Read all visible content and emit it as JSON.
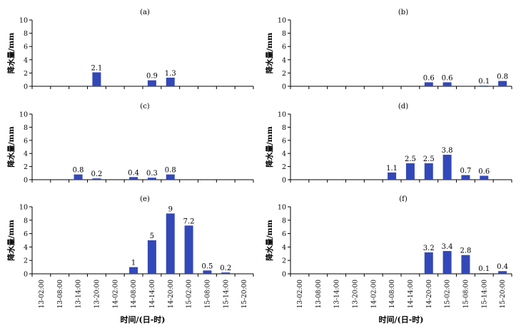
{
  "colors": {
    "bar": "#3348b8",
    "axis": "#000000"
  },
  "x_axis_label": "时间/(日-时)",
  "y_axis_label": "降水量/mm",
  "categories": [
    "13-02:00",
    "13-08:00",
    "13-14:00",
    "13-20:00",
    "14-02:00",
    "14-08:00",
    "14-14:00",
    "14-20:00",
    "15-02:00",
    "15-08:00",
    "15-14:00",
    "15-20:00"
  ],
  "chart_data": [
    {
      "type": "bar",
      "title": "(a)",
      "ylabel": "降水量/mm",
      "xlabel": "",
      "ylim": [
        0,
        10
      ],
      "yticks": [
        0,
        2,
        4,
        6,
        8,
        10
      ],
      "categories": [
        "13-02:00",
        "13-08:00",
        "13-14:00",
        "13-20:00",
        "14-02:00",
        "14-08:00",
        "14-14:00",
        "14-20:00",
        "15-02:00",
        "15-08:00",
        "15-14:00",
        "15-20:00"
      ],
      "values": [
        0,
        0,
        0,
        2.1,
        0,
        0,
        0.9,
        1.3,
        0,
        0,
        0,
        0
      ],
      "labels": [
        "",
        "",
        "",
        "2.1",
        "",
        "",
        "0.9",
        "1.3",
        "",
        "",
        "",
        ""
      ]
    },
    {
      "type": "bar",
      "title": "(b)",
      "ylabel": "降水量/mm",
      "xlabel": "",
      "ylim": [
        0,
        10
      ],
      "yticks": [
        0,
        2,
        4,
        6,
        8,
        10
      ],
      "categories": [
        "13-02:00",
        "13-08:00",
        "13-14:00",
        "13-20:00",
        "14-02:00",
        "14-08:00",
        "14-14:00",
        "14-20:00",
        "15-02:00",
        "15-08:00",
        "15-14:00",
        "15-20:00"
      ],
      "values": [
        0,
        0,
        0,
        0,
        0,
        0,
        0,
        0.6,
        0.6,
        0,
        0.1,
        0.8
      ],
      "labels": [
        "",
        "",
        "",
        "",
        "",
        "",
        "",
        "0.6",
        "0.6",
        "",
        "0.1",
        "0.8"
      ]
    },
    {
      "type": "bar",
      "title": "(c)",
      "ylabel": "降水量/mm",
      "xlabel": "",
      "ylim": [
        0,
        10
      ],
      "yticks": [
        0,
        2,
        4,
        6,
        8,
        10
      ],
      "categories": [
        "13-02:00",
        "13-08:00",
        "13-14:00",
        "13-20:00",
        "14-02:00",
        "14-08:00",
        "14-14:00",
        "14-20:00",
        "15-02:00",
        "15-08:00",
        "15-14:00",
        "15-20:00"
      ],
      "values": [
        0,
        0,
        0.8,
        0.2,
        0,
        0.4,
        0.3,
        0.8,
        0,
        0,
        0,
        0
      ],
      "labels": [
        "",
        "",
        "0.8",
        "0.2",
        "",
        "0.4",
        "0.3",
        "0.8",
        "",
        "",
        "",
        ""
      ]
    },
    {
      "type": "bar",
      "title": "(d)",
      "ylabel": "降水量/mm",
      "xlabel": "",
      "ylim": [
        0,
        10
      ],
      "yticks": [
        0,
        2,
        4,
        6,
        8,
        10
      ],
      "categories": [
        "13-02:00",
        "13-08:00",
        "13-14:00",
        "13-20:00",
        "14-02:00",
        "14-08:00",
        "14-14:00",
        "14-20:00",
        "15-02:00",
        "15-08:00",
        "15-14:00",
        "15-20:00"
      ],
      "values": [
        0,
        0,
        0,
        0,
        0,
        1.1,
        2.5,
        2.5,
        3.8,
        0.7,
        0.6,
        0
      ],
      "labels": [
        "",
        "",
        "",
        "",
        "",
        "1.1",
        "2.5",
        "2.5",
        "3.8",
        "0.7",
        "0.6",
        ""
      ]
    },
    {
      "type": "bar",
      "title": "(e)",
      "ylabel": "降水量/mm",
      "xlabel": "时间/(日-时)",
      "ylim": [
        0,
        10
      ],
      "yticks": [
        0,
        2,
        4,
        6,
        8,
        10
      ],
      "categories": [
        "13-02:00",
        "13-08:00",
        "13-14:00",
        "13-20:00",
        "14-02:00",
        "14-08:00",
        "14-14:00",
        "14-20:00",
        "15-02:00",
        "15-08:00",
        "15-14:00",
        "15-20:00"
      ],
      "values": [
        0,
        0,
        0,
        0,
        0,
        1,
        5,
        9,
        7.2,
        0.5,
        0.2,
        0
      ],
      "labels": [
        "",
        "",
        "",
        "",
        "",
        "1",
        "5",
        "9",
        "7.2",
        "0.5",
        "0.2",
        ""
      ]
    },
    {
      "type": "bar",
      "title": "(f)",
      "ylabel": "降水量/mm",
      "xlabel": "时间/(日-时)",
      "ylim": [
        0,
        10
      ],
      "yticks": [
        0,
        2,
        4,
        6,
        8,
        10
      ],
      "categories": [
        "13-02:00",
        "13-08:00",
        "13-14:00",
        "13-20:00",
        "14-02:00",
        "14-08:00",
        "14-14:00",
        "14-20:00",
        "15-02:00",
        "15-08:00",
        "15-14:00",
        "15-20:00"
      ],
      "values": [
        0,
        0,
        0,
        0,
        0,
        0,
        0,
        3.2,
        3.4,
        2.8,
        0.1,
        0.4
      ],
      "labels": [
        "",
        "",
        "",
        "",
        "",
        "",
        "",
        "3.2",
        "3.4",
        "2.8",
        "0.1",
        "0.4"
      ]
    }
  ]
}
